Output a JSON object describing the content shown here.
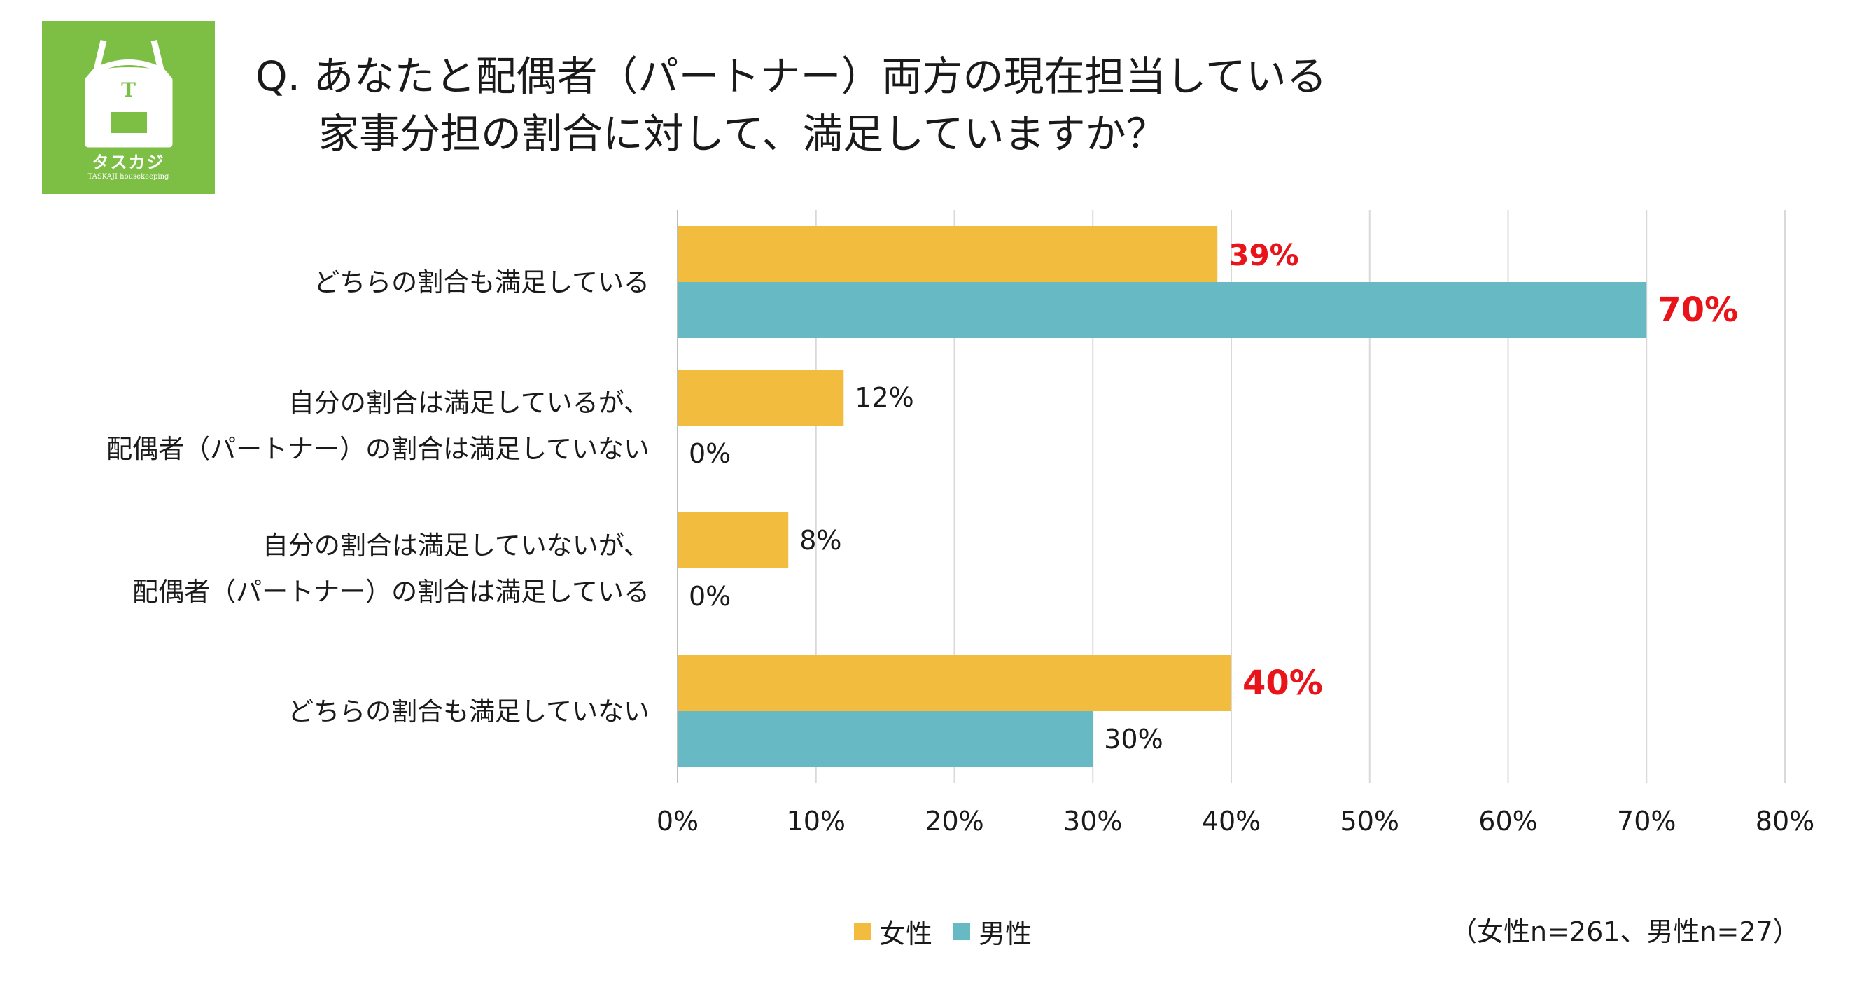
{
  "logo": {
    "name": "タスカジ",
    "tagline": "TASKAJI housekeeping",
    "apron_letter": "T",
    "color": "#7dbf45"
  },
  "title": {
    "line1": "Q. あなたと配偶者（パートナー）両方の現在担当している",
    "line2": "家事分担の割合に対して、満足していますか？"
  },
  "chart_data": {
    "type": "bar",
    "orientation": "horizontal",
    "categories": [
      [
        "どちらの割合も満足している"
      ],
      [
        "自分の割合は満足しているが、",
        "配偶者（パートナー）の割合は満足していない"
      ],
      [
        "自分の割合は満足していないが、",
        "配偶者（パートナー）の割合は満足している"
      ],
      [
        "どちらの割合も満足していない"
      ]
    ],
    "series": [
      {
        "name": "女性",
        "color": "#f2bd3e",
        "values": [
          39,
          12,
          8,
          40
        ],
        "labels": [
          "39%",
          "12%",
          "8%",
          "40%"
        ],
        "highlight": [
          true,
          false,
          false,
          true
        ]
      },
      {
        "name": "男性",
        "color": "#67b9c4",
        "values": [
          70,
          0,
          0,
          30
        ],
        "labels": [
          "70%",
          "0%",
          "0%",
          "30%"
        ],
        "highlight": [
          true,
          false,
          false,
          false
        ]
      }
    ],
    "xlim": [
      0,
      80
    ],
    "xticks": [
      0,
      10,
      20,
      30,
      40,
      50,
      60,
      70,
      80
    ],
    "xtick_labels": [
      "0%",
      "10%",
      "20%",
      "30%",
      "40%",
      "50%",
      "60%",
      "70%",
      "80%"
    ],
    "highlight_color": "#e8141a",
    "grid": true,
    "legend_position": "bottom"
  },
  "footnote": "（女性n=261、男性n=27）"
}
